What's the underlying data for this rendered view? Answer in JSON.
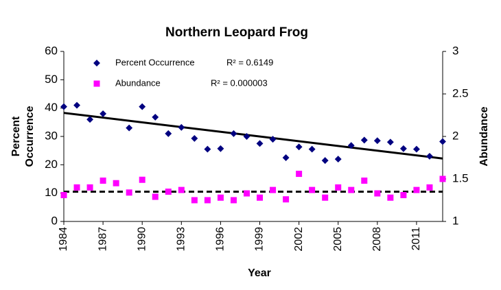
{
  "chart_data": {
    "type": "scatter",
    "title": "Northern Leopard Frog",
    "x_label": "Year",
    "y_label": [
      "Percent",
      "Occurrence"
    ],
    "y2_label": "Abundance",
    "x": [
      1984,
      1985,
      1986,
      1987,
      1988,
      1989,
      1990,
      1991,
      1992,
      1993,
      1994,
      1995,
      1996,
      1997,
      1998,
      1999,
      2000,
      2001,
      2002,
      2003,
      2004,
      2005,
      2006,
      2007,
      2008,
      2009,
      2010,
      2011,
      2012,
      2013
    ],
    "series": [
      {
        "name": "Percent Occurrence",
        "color": "#000080",
        "marker": "diamond",
        "r2_label": "R² = 0.6149",
        "values": [
          40.5,
          41,
          36,
          38,
          null,
          33,
          40.5,
          36.8,
          31,
          33.2,
          29.3,
          25.5,
          25.7,
          31,
          30,
          27.5,
          29,
          22.5,
          26.3,
          25.5,
          21.5,
          22,
          26.8,
          28.7,
          28.5,
          28,
          25.7,
          25.5,
          23,
          28.2
        ],
        "trend": [
          38.3,
          22.2
        ],
        "trend_style": "solid"
      },
      {
        "name": "Abundance",
        "color": "#ff00ff",
        "marker": "square",
        "axis": "y2",
        "r2_label": "R² = 0.000003",
        "values": [
          1.31,
          1.4,
          1.4,
          1.48,
          1.45,
          1.34,
          1.49,
          1.29,
          1.35,
          1.37,
          1.25,
          1.25,
          1.28,
          1.25,
          1.33,
          1.28,
          1.37,
          1.26,
          1.56,
          1.37,
          1.28,
          1.4,
          1.37,
          1.48,
          1.33,
          1.28,
          1.31,
          1.37,
          1.4,
          1.5
        ],
        "trend": [
          1.35,
          1.35
        ],
        "trend_style": "dashed"
      }
    ],
    "xlim": [
      1984,
      2013
    ],
    "xticks": [
      1984,
      1987,
      1990,
      1993,
      1996,
      1999,
      2002,
      2005,
      2008,
      2011
    ],
    "ylim": [
      0,
      60
    ],
    "yticks": [
      0,
      10,
      20,
      30,
      40,
      50,
      60
    ],
    "y2lim": [
      1,
      3
    ],
    "y2ticks": [
      1,
      1.5,
      2,
      2.5,
      3
    ]
  }
}
